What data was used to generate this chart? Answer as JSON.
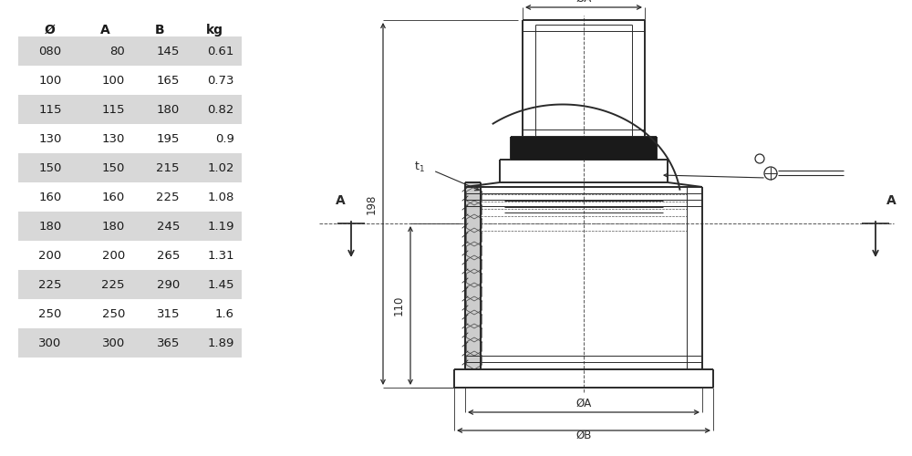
{
  "table_headers": [
    "Ø",
    "A",
    "B",
    "kg"
  ],
  "table_data": [
    [
      "080",
      "80",
      "145",
      "0.61"
    ],
    [
      "100",
      "100",
      "165",
      "0.73"
    ],
    [
      "115",
      "115",
      "180",
      "0.82"
    ],
    [
      "130",
      "130",
      "195",
      "0.9"
    ],
    [
      "150",
      "150",
      "215",
      "1.02"
    ],
    [
      "160",
      "160",
      "225",
      "1.08"
    ],
    [
      "180",
      "180",
      "245",
      "1.19"
    ],
    [
      "200",
      "200",
      "265",
      "1.31"
    ],
    [
      "225",
      "225",
      "290",
      "1.45"
    ],
    [
      "250",
      "250",
      "315",
      "1.6"
    ],
    [
      "300",
      "300",
      "365",
      "1.89"
    ]
  ],
  "row_bg_shaded": "#d8d8d8",
  "row_bg_white": "#ffffff",
  "bg_color": "#ffffff",
  "line_color": "#2a2a2a",
  "dim_color": "#2a2a2a",
  "text_color": "#1a1a1a"
}
